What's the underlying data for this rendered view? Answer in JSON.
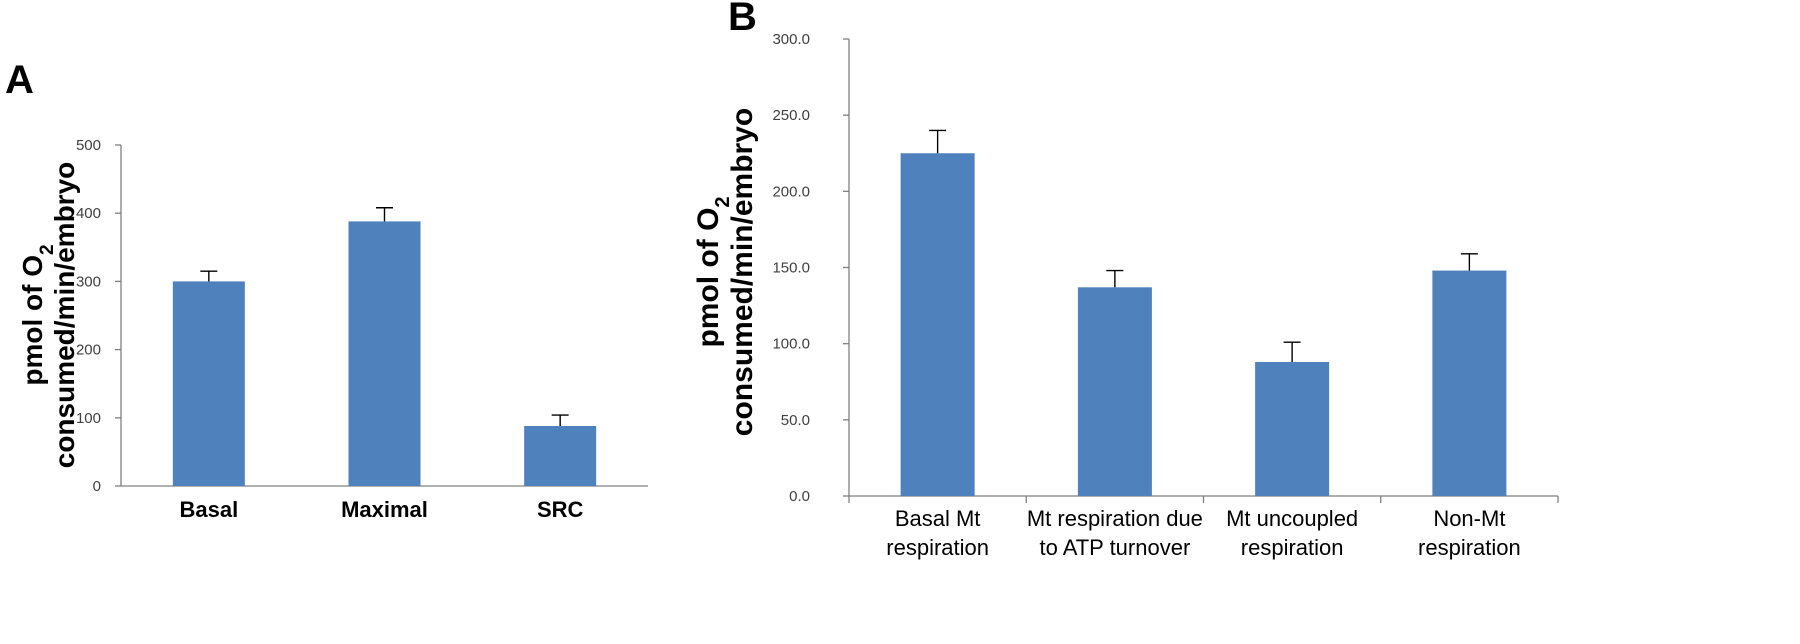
{
  "chart_data": [
    {
      "panel": "A",
      "type": "bar",
      "categories": [
        "Basal",
        "Maximal",
        "SRC"
      ],
      "values": [
        300,
        388,
        88
      ],
      "errors": [
        15,
        20,
        16
      ],
      "ylim": [
        0,
        500
      ],
      "yticks": [
        "0",
        "100",
        "200",
        "300",
        "400",
        "500"
      ],
      "ylabel_line1": "pmol of O",
      "ylabel_sub": "2",
      "ylabel_line2": "consumed/min/embryo",
      "color": "#4f81bd"
    },
    {
      "panel": "B",
      "type": "bar",
      "categories": [
        [
          "Basal Mt",
          "respiration"
        ],
        [
          "Mt respiration due",
          "to ATP turnover"
        ],
        [
          "Mt uncoupled",
          "respiration"
        ],
        [
          "Non-Mt",
          "respiration"
        ]
      ],
      "values": [
        225,
        137,
        88,
        148
      ],
      "errors": [
        15,
        11,
        13,
        11
      ],
      "ylim": [
        0,
        300
      ],
      "yticks": [
        "0.0",
        "50.0",
        "100.0",
        "150.0",
        "200.0",
        "250.0",
        "300.0"
      ],
      "ylabel_line1": "pmol of O",
      "ylabel_sub": "2",
      "ylabel_line2": "consumed/min/embryo",
      "color": "#4f81bd"
    }
  ]
}
